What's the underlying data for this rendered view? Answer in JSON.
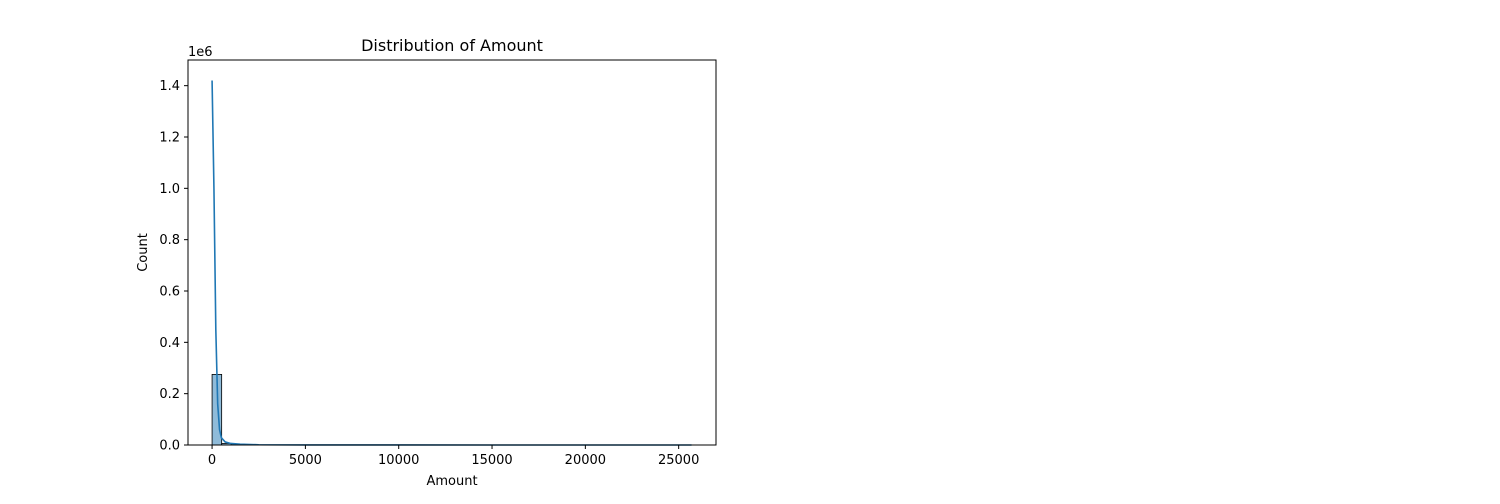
{
  "chart_data": {
    "type": "bar",
    "title": "Distribution of Amount",
    "xlabel": "Amount",
    "ylabel": "Count",
    "y_offset_text": "1e6",
    "xlim": [
      -1290,
      27000
    ],
    "ylim": [
      0,
      1.5
    ],
    "y_scale_note": "counts in units of 1e6",
    "x_ticks": [
      0,
      5000,
      10000,
      15000,
      20000,
      25000
    ],
    "x_tick_labels": [
      "0",
      "5000",
      "10000",
      "15000",
      "20000",
      "25000"
    ],
    "y_ticks": [
      0.0,
      0.2,
      0.4,
      0.6,
      0.8,
      1.0,
      1.2,
      1.4
    ],
    "y_tick_labels": [
      "0.0",
      "0.2",
      "0.4",
      "0.6",
      "0.8",
      "1.0",
      "1.2",
      "1.4"
    ],
    "grid": false,
    "bar_color": "#1f77b4",
    "bar_fill_opacity": 0.5,
    "line_color": "#1f77b4",
    "histogram": {
      "bins": [
        {
          "x0": 0,
          "x1": 514,
          "count": 0.275
        },
        {
          "x0": 514,
          "x1": 1028,
          "count": 0.006
        },
        {
          "x0": 1028,
          "x1": 1542,
          "count": 0.0015
        },
        {
          "x0": 1542,
          "x1": 2056,
          "count": 0.0005
        },
        {
          "x0": 2056,
          "x1": 2570,
          "count": 0.0002
        }
      ]
    },
    "kde": {
      "x": [
        0,
        100,
        200,
        300,
        400,
        500,
        700,
        1000,
        1500,
        2500,
        5000,
        10000,
        15000,
        20000,
        25691
      ],
      "y": [
        1.42,
        1.0,
        0.45,
        0.16,
        0.06,
        0.028,
        0.012,
        0.006,
        0.003,
        0.001,
        0.0004,
        0.0001,
        5e-05,
        2e-05,
        0.0
      ]
    }
  }
}
